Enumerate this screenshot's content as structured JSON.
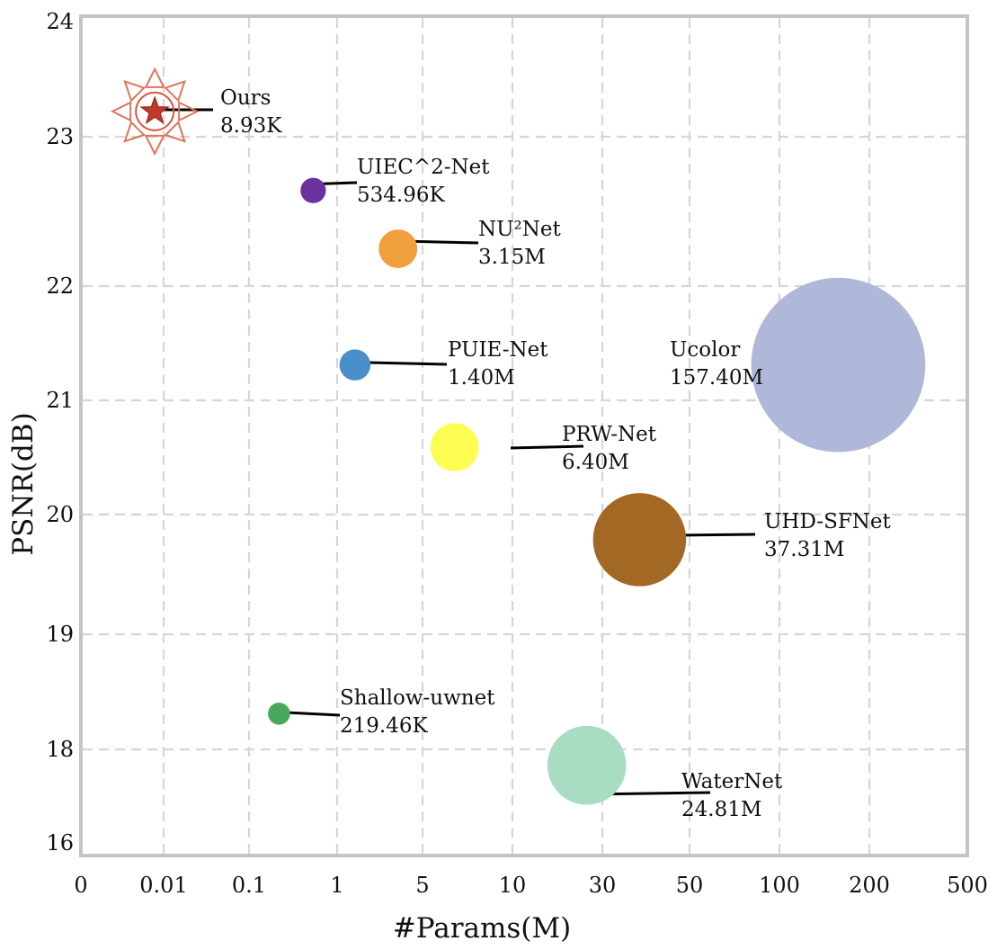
{
  "chart_data": {
    "type": "scatter",
    "subtype": "bubble",
    "xlabel": "#Params(M)",
    "ylabel": "PSNR(dB)",
    "x_ticks": [
      "0",
      "0.01",
      "0.1",
      "1",
      "5",
      "10",
      "30",
      "50",
      "100",
      "200",
      "500"
    ],
    "y_ticks": [
      "16",
      "18",
      "19",
      "20",
      "21",
      "22",
      "23",
      "24"
    ],
    "grid": true,
    "points": [
      {
        "name": "Ours",
        "params_label": "8.93K",
        "params_m": 0.00893,
        "psnr": 23.22,
        "color": "#c0392b",
        "marker": "star-sun"
      },
      {
        "name": "UIEC^2-Net",
        "params_label": "534.96K",
        "params_m": 0.535,
        "psnr": 22.64,
        "color": "#6a329f"
      },
      {
        "name": "NU²Net",
        "params_label": "3.15M",
        "params_m": 3.15,
        "psnr": 22.25,
        "color": "#f0a03c"
      },
      {
        "name": "PUIE-Net",
        "params_label": "1.40M",
        "params_m": 1.4,
        "psnr": 21.31,
        "color": "#4a8fc9"
      },
      {
        "name": "Ucolor",
        "params_label": "157.40M",
        "params_m": 157.4,
        "psnr": 21.31,
        "color": "#b0b8da"
      },
      {
        "name": "PRW-Net",
        "params_label": "6.40M",
        "params_m": 6.4,
        "psnr": 20.59,
        "color": "#fdfc50"
      },
      {
        "name": "UHD-SFNet",
        "params_label": "37.31M",
        "params_m": 37.31,
        "psnr": 19.79,
        "color": "#a36924"
      },
      {
        "name": "Shallow-uwnet",
        "params_label": "219.46K",
        "params_m": 0.219,
        "psnr": 18.31,
        "color": "#4aa85a"
      },
      {
        "name": "WaterNet",
        "params_label": "24.81M",
        "params_m": 24.81,
        "psnr": 17.66,
        "color": "#a8dcc3"
      }
    ]
  }
}
